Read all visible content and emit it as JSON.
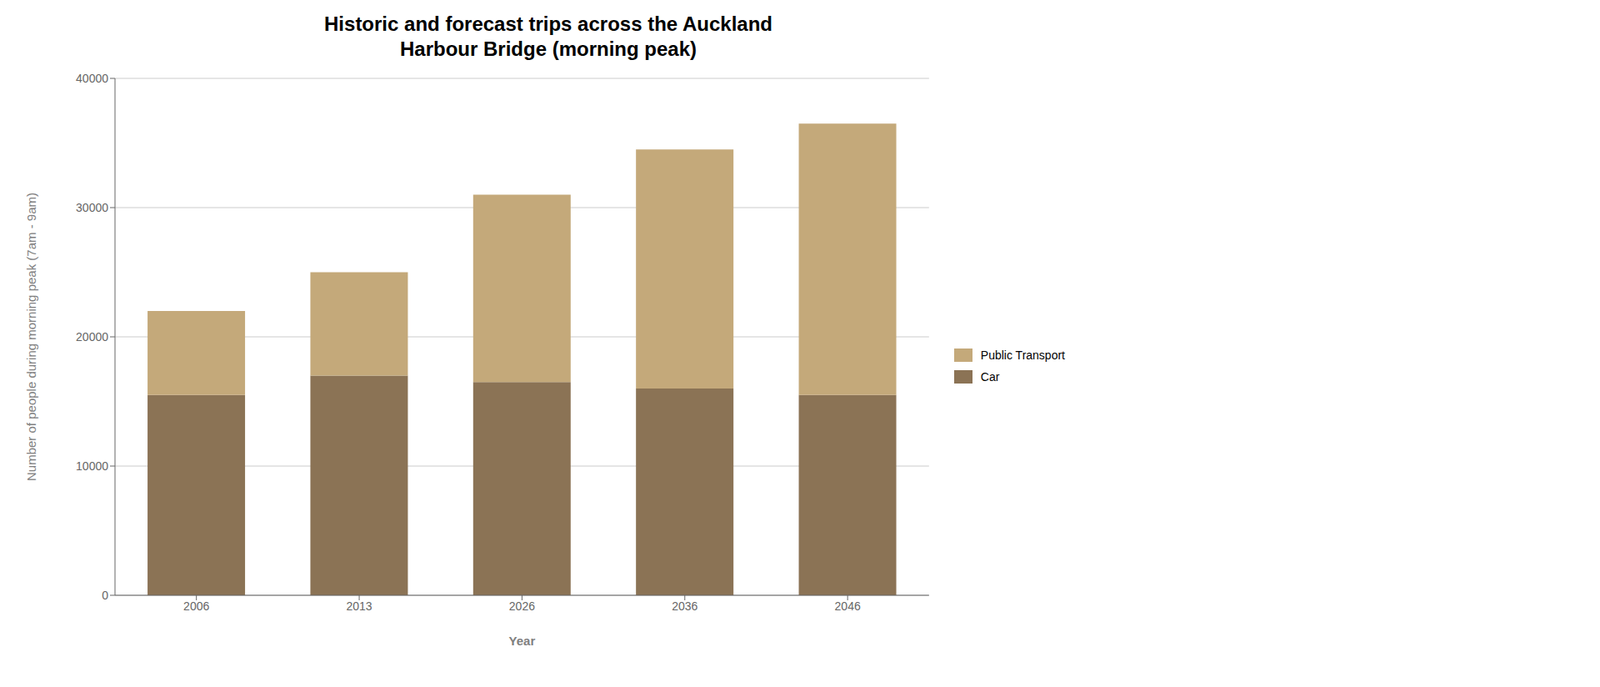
{
  "chart_data": {
    "type": "bar",
    "stacked": true,
    "title": "Historic and forecast trips across the Auckland\nHarbour Bridge (morning peak)",
    "x_label": "Year",
    "y_label": "Number of people during morning peak (7am - 9am)",
    "categories": [
      "2006",
      "2013",
      "2026",
      "2036",
      "2046"
    ],
    "series": [
      {
        "name": "Car",
        "color": "#8B7355",
        "values": [
          15500,
          17000,
          16500,
          16000,
          15500
        ]
      },
      {
        "name": "Public Transport",
        "color": "#C4A97A",
        "values": [
          6500,
          8000,
          14500,
          18500,
          21000
        ]
      }
    ],
    "ylim": [
      0,
      40000
    ],
    "yticks": [
      0,
      10000,
      20000,
      30000,
      40000
    ],
    "grid": true,
    "legend": "right"
  }
}
